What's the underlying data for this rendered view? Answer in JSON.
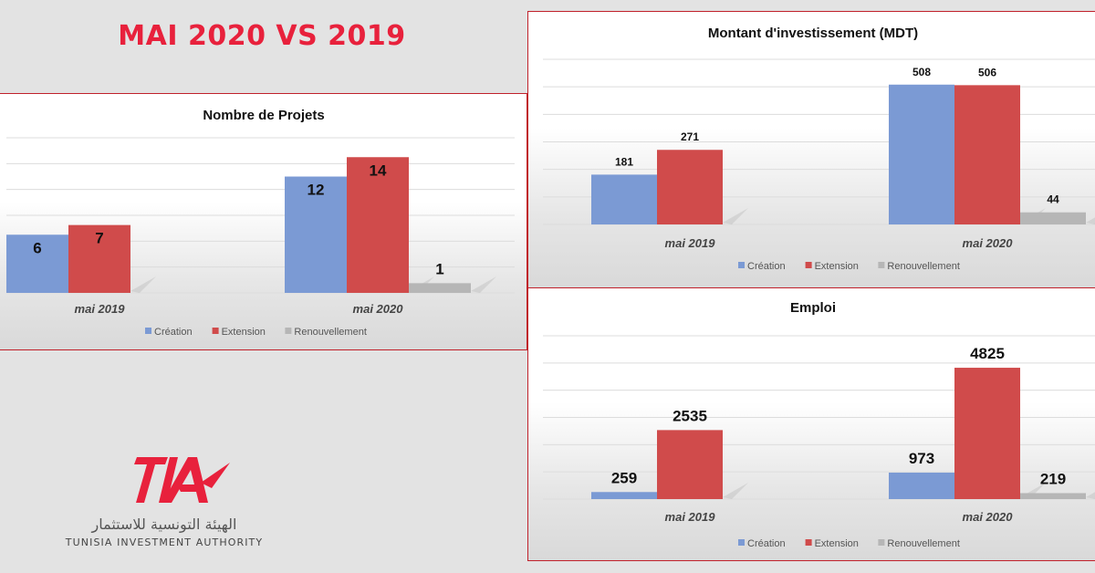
{
  "page_title": "MAI 2020 VS 2019",
  "colors": {
    "creation": "#7b9ad4",
    "extension": "#d04b4b",
    "renouvellement": "#b6b6b6",
    "title": "#e8213c",
    "border": "#c0202a"
  },
  "logo": {
    "brand": "TIA",
    "arabic": "الهيئة التونسية للاستثمار",
    "english": "TUNISIA INVESTMENT AUTHORITY"
  },
  "chart_data": [
    {
      "type": "bar",
      "title": "Nombre de Projets",
      "categories": [
        "mai 2019",
        "mai 2020"
      ],
      "series": [
        {
          "name": "Création",
          "values": [
            6,
            12
          ]
        },
        {
          "name": "Extension",
          "values": [
            7,
            14
          ]
        },
        {
          "name": "Renouvellement",
          "values": [
            0,
            1
          ]
        }
      ],
      "labels": [
        [
          "6",
          "12"
        ],
        [
          "7",
          "14"
        ],
        [
          "",
          "1"
        ]
      ],
      "ylim": [
        0,
        16
      ],
      "grid": true,
      "legend": "bottom"
    },
    {
      "type": "bar",
      "title": "Montant d'investissement (MDT)",
      "categories": [
        "mai 2019",
        "mai 2020"
      ],
      "series": [
        {
          "name": "Création",
          "values": [
            181,
            508
          ]
        },
        {
          "name": "Extension",
          "values": [
            271,
            506
          ]
        },
        {
          "name": "Renouvellement",
          "values": [
            0,
            44
          ]
        }
      ],
      "labels": [
        [
          "181",
          "508"
        ],
        [
          "271",
          "506"
        ],
        [
          "",
          "44"
        ]
      ],
      "ylim": [
        0,
        600
      ],
      "grid": true,
      "legend": "bottom"
    },
    {
      "type": "bar",
      "title": "Emploi",
      "categories": [
        "mai 2019",
        "mai 2020"
      ],
      "series": [
        {
          "name": "Création",
          "values": [
            259,
            973
          ]
        },
        {
          "name": "Extension",
          "values": [
            2535,
            4825
          ]
        },
        {
          "name": "Renouvellement",
          "values": [
            0,
            219
          ]
        }
      ],
      "labels": [
        [
          "259",
          "973"
        ],
        [
          "2535",
          "4825"
        ],
        [
          "",
          "219"
        ]
      ],
      "ylim": [
        0,
        6000
      ],
      "grid": true,
      "legend": "bottom"
    }
  ]
}
